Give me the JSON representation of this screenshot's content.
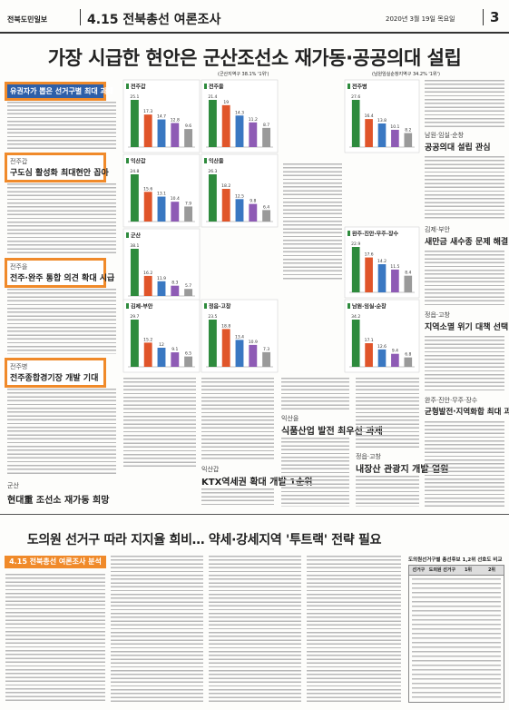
{
  "header": {
    "paper": "전북도민일보",
    "section": "4.15 전북총선 여론조사",
    "date": "2020년 3월 19일 목요일",
    "page": "3"
  },
  "headline": "가장 시급한 현안은 군산조선소 재가동·공공의대 설립",
  "sub_left": "(군산지역구 38.1% '1위')",
  "sub_right": "(남원임실순창지역구 34.2% '1위')",
  "left_boxes": [
    {
      "title": "유권자가 뽑은 선거구별 최대 과제"
    },
    {
      "kicker": "전주갑",
      "title": "구도심 활성화 최대현안 꼽아"
    },
    {
      "kicker": "전주을",
      "title": "전주·완주 통합 의견 확대 시급"
    },
    {
      "kicker": "전주병",
      "title": "전주종합경기장 개발 기대"
    }
  ],
  "right_sections": [
    {
      "kicker": "남원·임실·순창",
      "title": "공공의대 설립 관심"
    },
    {
      "kicker": "김제·부안",
      "title": "새만금 새수종 문제 해결"
    },
    {
      "kicker": "정읍·고창",
      "title": "지역소멸 위기 대책 선택"
    },
    {
      "kicker": "완주·진안·무주·장수",
      "title": "균형발전·지역화합 최대 과제"
    }
  ],
  "middle_sections": [
    {
      "kicker": "군산",
      "title": "현대重 조선소 재가동 희망"
    },
    {
      "kicker": "익산갑",
      "title": "KTX역세권 확대 개발 1순위"
    },
    {
      "kicker": "익산을",
      "title": "식품산업 발전 최우선 과제"
    },
    {
      "kicker": "정읍·고창",
      "title": "내장산 관광지 개발 염원"
    }
  ],
  "chart_colors": [
    "#2e8b3d",
    "#e0552a",
    "#3a78c2",
    "#8e5bb5",
    "#9a9a9a"
  ],
  "charts": [
    {
      "title": "전주갑",
      "values": [
        25.1,
        17.3,
        14.7,
        12.8,
        9.6
      ]
    },
    {
      "title": "전주을",
      "values": [
        21.4,
        19.0,
        14.3,
        11.2,
        8.7
      ]
    },
    {
      "title": "익산갑",
      "values": [
        24.8,
        15.6,
        13.1,
        10.4,
        7.9
      ]
    },
    {
      "title": "익산을",
      "values": [
        26.3,
        18.2,
        12.5,
        9.8,
        6.4
      ]
    },
    {
      "title": "군산",
      "values": [
        38.1,
        16.2,
        11.9,
        8.3,
        5.7
      ]
    },
    {
      "title": "전주병",
      "values": [
        27.6,
        16.4,
        13.8,
        10.1,
        8.2
      ]
    },
    {
      "title": "남원·임실·순창",
      "values": [
        34.2,
        17.1,
        12.6,
        9.4,
        6.8
      ]
    },
    {
      "title": "정읍·고창",
      "values": [
        23.5,
        18.8,
        13.4,
        10.9,
        7.3
      ]
    },
    {
      "title": "김제·부안",
      "values": [
        29.7,
        15.2,
        12.0,
        9.1,
        6.5
      ]
    },
    {
      "title": "완주·진안·무주·장수",
      "values": [
        22.9,
        17.6,
        14.2,
        11.5,
        8.4
      ]
    }
  ],
  "bottom": {
    "headline": "도의원 선거구 따라 지지율 희비… 약세·강세지역 '투트랙' 전략 필요",
    "box": "4.15 전북총선 여론조사 분석",
    "table_title": "도의원선거구별 총선후보 1,2위 선호도 비교",
    "table_headers": [
      "선거구",
      "도의원 선거구",
      "1위",
      "2위"
    ]
  }
}
